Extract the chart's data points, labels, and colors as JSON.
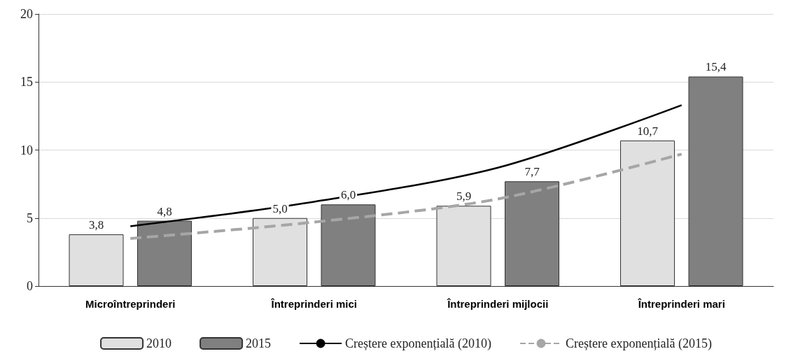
{
  "chart_data": {
    "type": "bar",
    "categories": [
      "Microîntreprinderi",
      "Întreprinderi mici",
      "Întreprinderi mijlocii",
      "Întreprinderi mari"
    ],
    "series": [
      {
        "name": "2010",
        "color": "#e0e0e0",
        "values": [
          3.8,
          5.0,
          5.9,
          10.7
        ],
        "value_labels": [
          "3,8",
          "5,0",
          "5,9",
          "10,7"
        ]
      },
      {
        "name": "2015",
        "color": "#808080",
        "values": [
          4.8,
          6.0,
          7.7,
          15.4
        ],
        "value_labels": [
          "4,8",
          "6,0",
          "7,7",
          "15,4"
        ]
      },
      {
        "name": "Creștere exponențială (2010)",
        "type": "line",
        "color": "#000000",
        "line_style": "solid",
        "values": [
          4.4,
          6.2,
          8.7,
          13.3
        ]
      },
      {
        "name": "Creștere exponențială (2015)",
        "type": "line",
        "color": "#a6a6a6",
        "line_style": "dashed",
        "values": [
          3.5,
          4.7,
          6.4,
          9.7
        ]
      }
    ],
    "ylim": [
      0,
      20
    ],
    "yticks": [
      0,
      5,
      10,
      15,
      20
    ],
    "grid": "y",
    "legend": "bottom",
    "marker": "none"
  }
}
